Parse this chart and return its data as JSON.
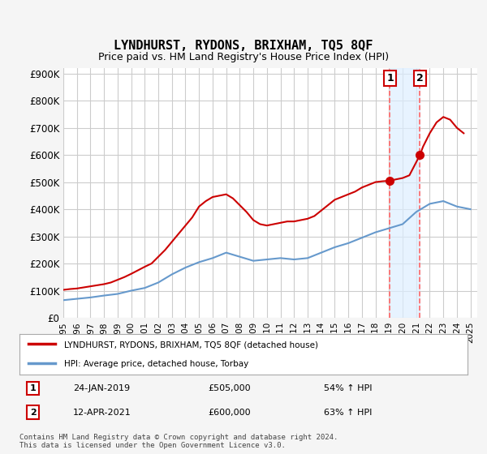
{
  "title": "LYNDHURST, RYDONS, BRIXHAM, TQ5 8QF",
  "subtitle": "Price paid vs. HM Land Registry's House Price Index (HPI)",
  "ylabel_ticks": [
    "£0",
    "£100K",
    "£200K",
    "£300K",
    "£400K",
    "£500K",
    "£600K",
    "£700K",
    "£800K",
    "£900K"
  ],
  "ytick_values": [
    0,
    100000,
    200000,
    300000,
    400000,
    500000,
    600000,
    700000,
    800000,
    900000
  ],
  "ylim": [
    0,
    920000
  ],
  "xlim_start": 1995.0,
  "xlim_end": 2025.5,
  "marker1_x": 2019.07,
  "marker1_y": 505000,
  "marker1_label": "1",
  "marker1_date": "24-JAN-2019",
  "marker1_price": "£505,000",
  "marker1_hpi": "54% ↑ HPI",
  "marker2_x": 2021.28,
  "marker2_y": 600000,
  "marker2_label": "2",
  "marker2_date": "12-APR-2021",
  "marker2_price": "£600,000",
  "marker2_hpi": "63% ↑ HPI",
  "legend_line1": "LYNDHURST, RYDONS, BRIXHAM, TQ5 8QF (detached house)",
  "legend_line2": "HPI: Average price, detached house, Torbay",
  "footer": "Contains HM Land Registry data © Crown copyright and database right 2024.\nThis data is licensed under the Open Government Licence v3.0.",
  "line_color_red": "#cc0000",
  "line_color_blue": "#6699cc",
  "shade_color": "#ddeeff",
  "vline_color": "#ff6666",
  "background_color": "#f5f5f5",
  "plot_bg_color": "#ffffff",
  "grid_color": "#cccccc",
  "years": [
    1995,
    1996,
    1997,
    1998,
    1999,
    2000,
    2001,
    2002,
    2003,
    2004,
    2005,
    2006,
    2007,
    2008,
    2009,
    2010,
    2011,
    2012,
    2013,
    2014,
    2015,
    2016,
    2017,
    2018,
    2019,
    2020,
    2021,
    2022,
    2023,
    2024,
    2025
  ],
  "hpi_values": [
    65000,
    70000,
    75000,
    82000,
    88000,
    100000,
    110000,
    130000,
    160000,
    185000,
    205000,
    220000,
    240000,
    225000,
    210000,
    215000,
    220000,
    215000,
    220000,
    240000,
    260000,
    275000,
    295000,
    315000,
    330000,
    345000,
    390000,
    420000,
    430000,
    410000,
    400000
  ],
  "hpi_values_fine": null,
  "red_line_x": [
    1995.0,
    1995.5,
    1996.0,
    1996.5,
    1997.0,
    1997.5,
    1998.0,
    1998.5,
    1999.0,
    1999.5,
    2000.0,
    2000.5,
    2001.0,
    2001.5,
    2002.0,
    2002.5,
    2003.0,
    2003.5,
    2004.0,
    2004.5,
    2005.0,
    2005.5,
    2006.0,
    2006.5,
    2007.0,
    2007.5,
    2008.0,
    2008.5,
    2009.0,
    2009.5,
    2010.0,
    2010.5,
    2011.0,
    2011.5,
    2012.0,
    2012.5,
    2013.0,
    2013.5,
    2014.0,
    2014.5,
    2015.0,
    2015.5,
    2016.0,
    2016.5,
    2017.0,
    2017.5,
    2018.0,
    2018.5,
    2019.07,
    2019.5,
    2020.0,
    2020.5,
    2021.28,
    2021.5,
    2022.0,
    2022.5,
    2023.0,
    2023.5,
    2024.0,
    2024.5
  ],
  "red_line_y": [
    103000,
    106000,
    108000,
    112000,
    116000,
    120000,
    124000,
    130000,
    140000,
    150000,
    162000,
    175000,
    188000,
    200000,
    225000,
    250000,
    280000,
    310000,
    340000,
    370000,
    410000,
    430000,
    445000,
    450000,
    455000,
    440000,
    415000,
    390000,
    360000,
    345000,
    340000,
    345000,
    350000,
    355000,
    355000,
    360000,
    365000,
    375000,
    395000,
    415000,
    435000,
    445000,
    455000,
    465000,
    480000,
    490000,
    500000,
    503000,
    505000,
    510000,
    515000,
    525000,
    600000,
    630000,
    680000,
    720000,
    740000,
    730000,
    700000,
    680000
  ]
}
